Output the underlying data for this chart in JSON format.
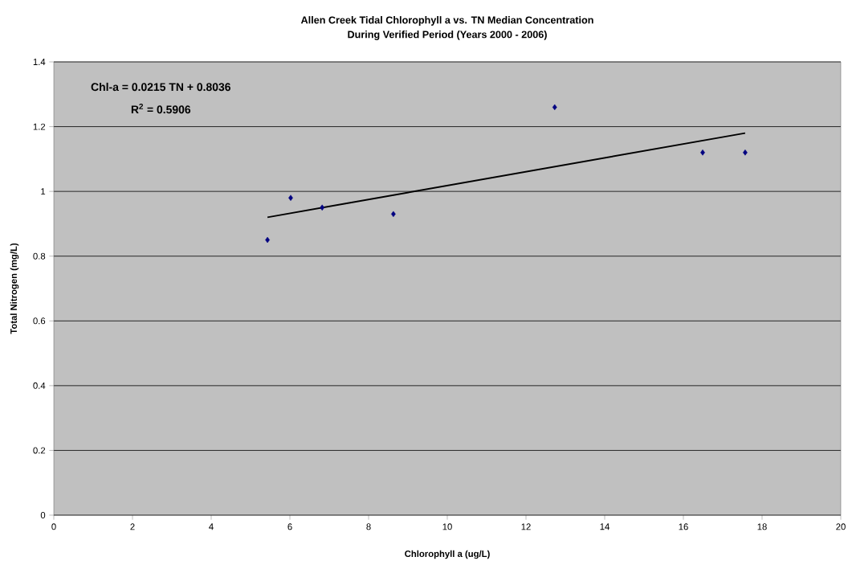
{
  "chart_data": {
    "type": "scatter",
    "title": "Allen Creek Tidal Chlorophyll a vs. TN Median Concentration",
    "subtitle": "During Verified Period (Years 2000 - 2006)",
    "xlabel": "Chlorophyll a (ug/L)",
    "ylabel": "Total Nitrogen (mg/L)",
    "annotations": [
      "Chl-a = 0.0215 TN + 0.8036",
      "R$^{2}$ = 0.5906"
    ],
    "x": [
      5.43,
      6.02,
      6.82,
      8.63,
      12.73,
      16.49,
      17.57
    ],
    "series": [
      {
        "color": "#000080",
        "marker": "diamond",
        "values": [
          0.85,
          0.98,
          0.95,
          0.93,
          1.26,
          1.12,
          1.12
        ]
      },
      {
        "type": "line",
        "color": "#000000",
        "marker": "none",
        "line_style": "solid",
        "x": [
          5.43,
          17.57
        ],
        "values": [
          0.92,
          1.18
        ]
      }
    ],
    "xlim": [
      0,
      20
    ],
    "ylim": [
      0,
      1.4
    ],
    "xticks": [
      0,
      2,
      4,
      6,
      8,
      10,
      12,
      14,
      16,
      18,
      20
    ],
    "yticks": [
      0,
      0.2,
      0.4,
      0.6,
      0.8,
      1,
      1.2,
      1.4
    ],
    "grid": "y"
  }
}
